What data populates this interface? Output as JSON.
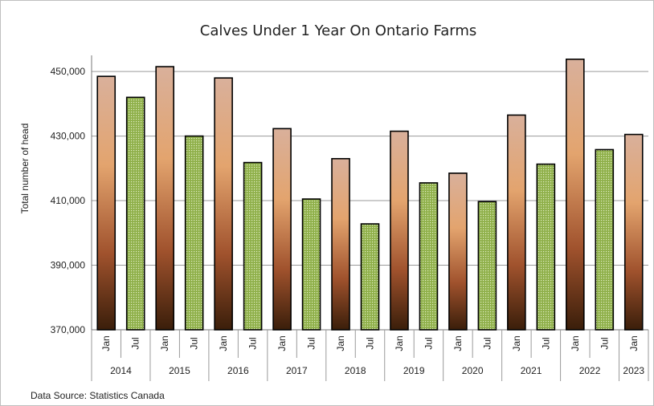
{
  "chart_data": {
    "type": "bar",
    "title": "Calves Under 1 Year On Ontario Farms",
    "ylabel": "Total number of head",
    "source": "Data Source: Statistics Canada",
    "ylim": [
      370000,
      455000
    ],
    "yticks": [
      370000,
      390000,
      410000,
      430000,
      450000
    ],
    "ytick_labels": [
      "370,000",
      "390,000",
      "410,000",
      "430,000",
      "450,000"
    ],
    "grid": true,
    "legend": "none",
    "colors": {
      "jan_top": "#d9b09b",
      "jan_mid": "#e3a46e",
      "jan_low": "#a0522d",
      "jan_bottom": "#3a1e0a",
      "jul_fill": "#8fb04a",
      "jul_dot": "#e2efc6"
    },
    "categories": [
      {
        "year": "2014",
        "month": "Jan",
        "value": 448500,
        "series": "jan"
      },
      {
        "year": "2014",
        "month": "Jul",
        "value": 442000,
        "series": "jul"
      },
      {
        "year": "2015",
        "month": "Jan",
        "value": 451500,
        "series": "jan"
      },
      {
        "year": "2015",
        "month": "Jul",
        "value": 430000,
        "series": "jul"
      },
      {
        "year": "2016",
        "month": "Jan",
        "value": 448000,
        "series": "jan"
      },
      {
        "year": "2016",
        "month": "Jul",
        "value": 421800,
        "series": "jul"
      },
      {
        "year": "2017",
        "month": "Jan",
        "value": 432300,
        "series": "jan"
      },
      {
        "year": "2017",
        "month": "Jul",
        "value": 410500,
        "series": "jul"
      },
      {
        "year": "2018",
        "month": "Jan",
        "value": 423000,
        "series": "jan"
      },
      {
        "year": "2018",
        "month": "Jul",
        "value": 402800,
        "series": "jul"
      },
      {
        "year": "2019",
        "month": "Jan",
        "value": 431500,
        "series": "jan"
      },
      {
        "year": "2019",
        "month": "Jul",
        "value": 415500,
        "series": "jul"
      },
      {
        "year": "2020",
        "month": "Jan",
        "value": 418500,
        "series": "jan"
      },
      {
        "year": "2020",
        "month": "Jul",
        "value": 409700,
        "series": "jul"
      },
      {
        "year": "2021",
        "month": "Jan",
        "value": 436500,
        "series": "jan"
      },
      {
        "year": "2021",
        "month": "Jul",
        "value": 421300,
        "series": "jul"
      },
      {
        "year": "2022",
        "month": "Jan",
        "value": 453800,
        "series": "jan"
      },
      {
        "year": "2022",
        "month": "Jul",
        "value": 425800,
        "series": "jul"
      },
      {
        "year": "2023",
        "month": "Jan",
        "value": 430500,
        "series": "jan"
      }
    ],
    "years": [
      "2014",
      "2015",
      "2016",
      "2017",
      "2018",
      "2019",
      "2020",
      "2021",
      "2022",
      "2023"
    ]
  }
}
